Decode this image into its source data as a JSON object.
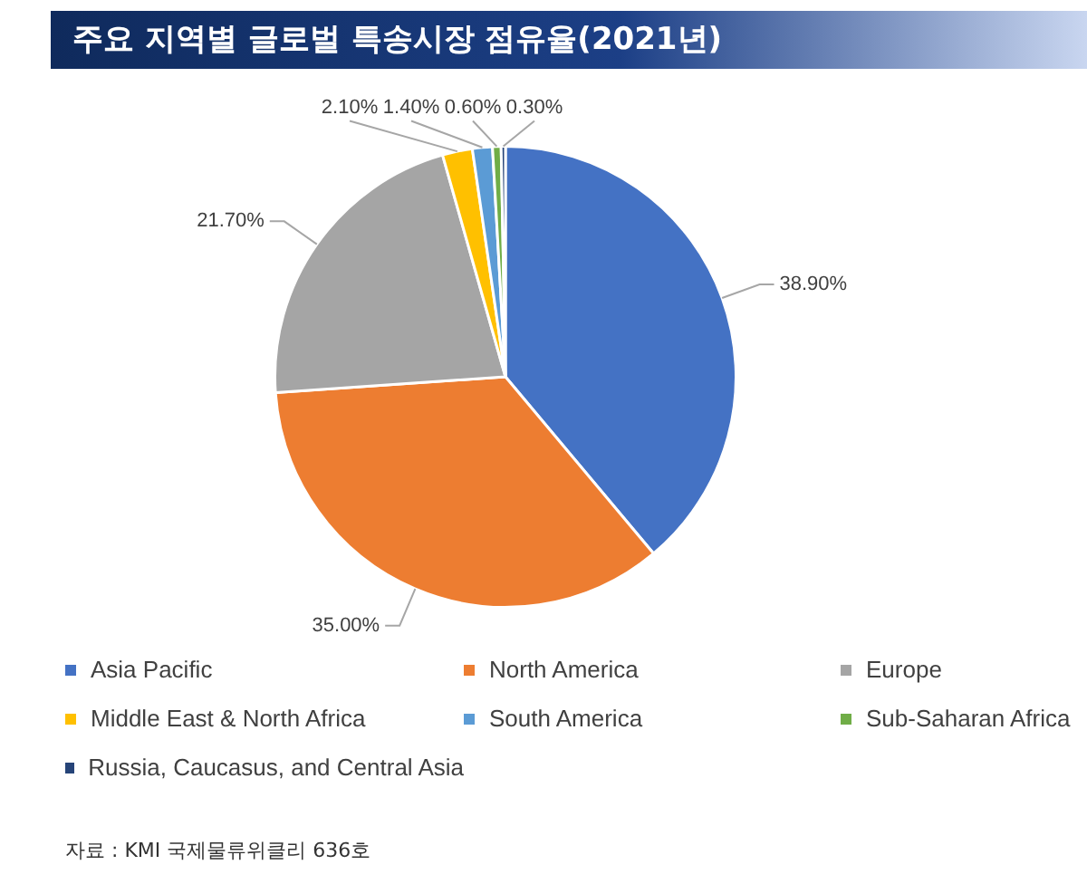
{
  "chart_data": {
    "type": "pie",
    "title": "주요 지역별 글로벌 특송시장 점유율(2021년)",
    "categories": [
      "Asia Pacific",
      "North America",
      "Europe",
      "Middle East & North Africa",
      "South America",
      "Sub-Saharan Africa",
      "Russia, Caucasus, and Central Asia"
    ],
    "values": [
      38.9,
      35.0,
      21.7,
      2.1,
      1.4,
      0.6,
      0.3
    ],
    "value_labels": [
      "38.90%",
      "35.00%",
      "21.70%",
      "2.10%",
      "1.40%",
      "0.60%",
      "0.30%"
    ],
    "colors": [
      "#4472c4",
      "#ed7d31",
      "#a5a5a5",
      "#ffc000",
      "#5b9bd5",
      "#70ad47",
      "#264478"
    ],
    "legend": "bottom",
    "annotations": [
      "자료 : KMI 국제물류위클리 636호"
    ]
  }
}
